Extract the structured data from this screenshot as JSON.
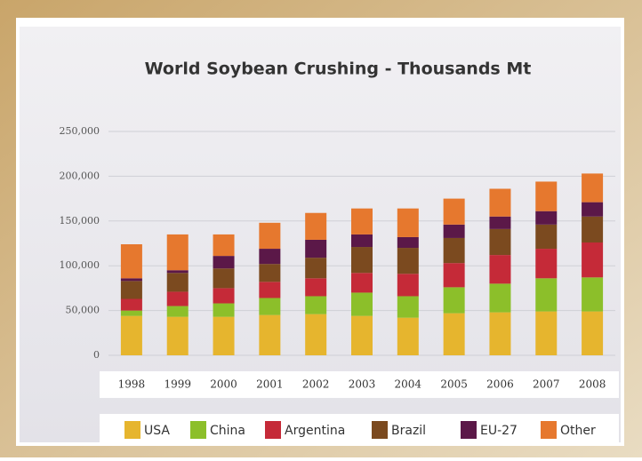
{
  "chart_data": {
    "type": "stacked-bar",
    "title": "World Soybean Crushing - Thousands Mt",
    "categories": [
      "1998",
      "1999",
      "2000",
      "2001",
      "2002",
      "2003",
      "2004",
      "2005",
      "2006",
      "2007",
      "2008"
    ],
    "series": [
      {
        "name": "USA",
        "color": "#e6b52e",
        "values": [
          44000,
          43000,
          43000,
          45000,
          46000,
          44000,
          42000,
          47000,
          48000,
          49000,
          49000
        ]
      },
      {
        "name": "China",
        "color": "#8cbf2a",
        "values": [
          6000,
          12000,
          15000,
          19000,
          20000,
          26000,
          24000,
          29000,
          32000,
          37000,
          38000
        ]
      },
      {
        "name": "Argentina",
        "color": "#c52a38",
        "values": [
          13000,
          16000,
          17000,
          18000,
          20000,
          22000,
          25000,
          27000,
          32000,
          33000,
          39000
        ]
      },
      {
        "name": "Brazil",
        "color": "#7b4a1f",
        "values": [
          20000,
          21000,
          22000,
          20000,
          23000,
          29000,
          29000,
          28000,
          29000,
          27000,
          29000
        ]
      },
      {
        "name": "EU-27",
        "color": "#5b1848",
        "values": [
          3000,
          3000,
          14000,
          17000,
          20000,
          14000,
          12000,
          15000,
          14000,
          15000,
          16000
        ]
      },
      {
        "name": "Other",
        "color": "#e6782e",
        "values": [
          38000,
          40000,
          24000,
          29000,
          30000,
          29000,
          32000,
          29000,
          31000,
          33000,
          32000
        ]
      }
    ],
    "ylim": [
      0,
      250000
    ],
    "yticks": [
      0,
      {
        "value": 50000,
        "label": "50,000"
      },
      {
        "value": 100000,
        "label": "100,000"
      },
      {
        "value": 150000,
        "label": "150,000"
      },
      {
        "value": 200000,
        "label": "200,000"
      },
      {
        "value": 250000,
        "label": "250,000"
      }
    ],
    "grid": true
  }
}
